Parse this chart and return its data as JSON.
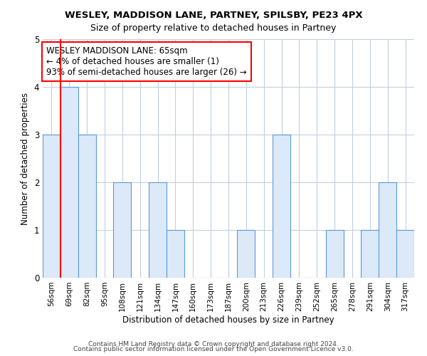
{
  "title": "WESLEY, MADDISON LANE, PARTNEY, SPILSBY, PE23 4PX",
  "subtitle": "Size of property relative to detached houses in Partney",
  "xlabel": "Distribution of detached houses by size in Partney",
  "ylabel": "Number of detached properties",
  "categories": [
    "56sqm",
    "69sqm",
    "82sqm",
    "95sqm",
    "108sqm",
    "121sqm",
    "134sqm",
    "147sqm",
    "160sqm",
    "173sqm",
    "187sqm",
    "200sqm",
    "213sqm",
    "226sqm",
    "239sqm",
    "252sqm",
    "265sqm",
    "278sqm",
    "291sqm",
    "304sqm",
    "317sqm"
  ],
  "values": [
    3,
    4,
    3,
    0,
    2,
    0,
    2,
    1,
    0,
    0,
    0,
    1,
    0,
    3,
    0,
    0,
    1,
    0,
    1,
    2,
    1
  ],
  "bar_fill_color": "#dce9f8",
  "bar_edge_color": "#5b9bd5",
  "annotation_title": "WESLEY MADDISON LANE: 65sqm",
  "annotation_line1": "← 4% of detached houses are smaller (1)",
  "annotation_line2": "93% of semi-detached houses are larger (26) →",
  "ref_line_x": 0.5,
  "ylim": [
    0,
    5
  ],
  "yticks": [
    0,
    1,
    2,
    3,
    4,
    5
  ],
  "footer1": "Contains HM Land Registry data © Crown copyright and database right 2024.",
  "footer2": "Contains public sector information licensed under the Open Government Licence v3.0.",
  "bg_color": "#ffffff",
  "plot_bg_color": "#ffffff",
  "grid_color": "#c0cfe0",
  "title_fontsize": 9.5,
  "label_fontsize": 8.5,
  "tick_fontsize": 7.5,
  "footer_fontsize": 6.5,
  "ann_fontsize": 8.5
}
